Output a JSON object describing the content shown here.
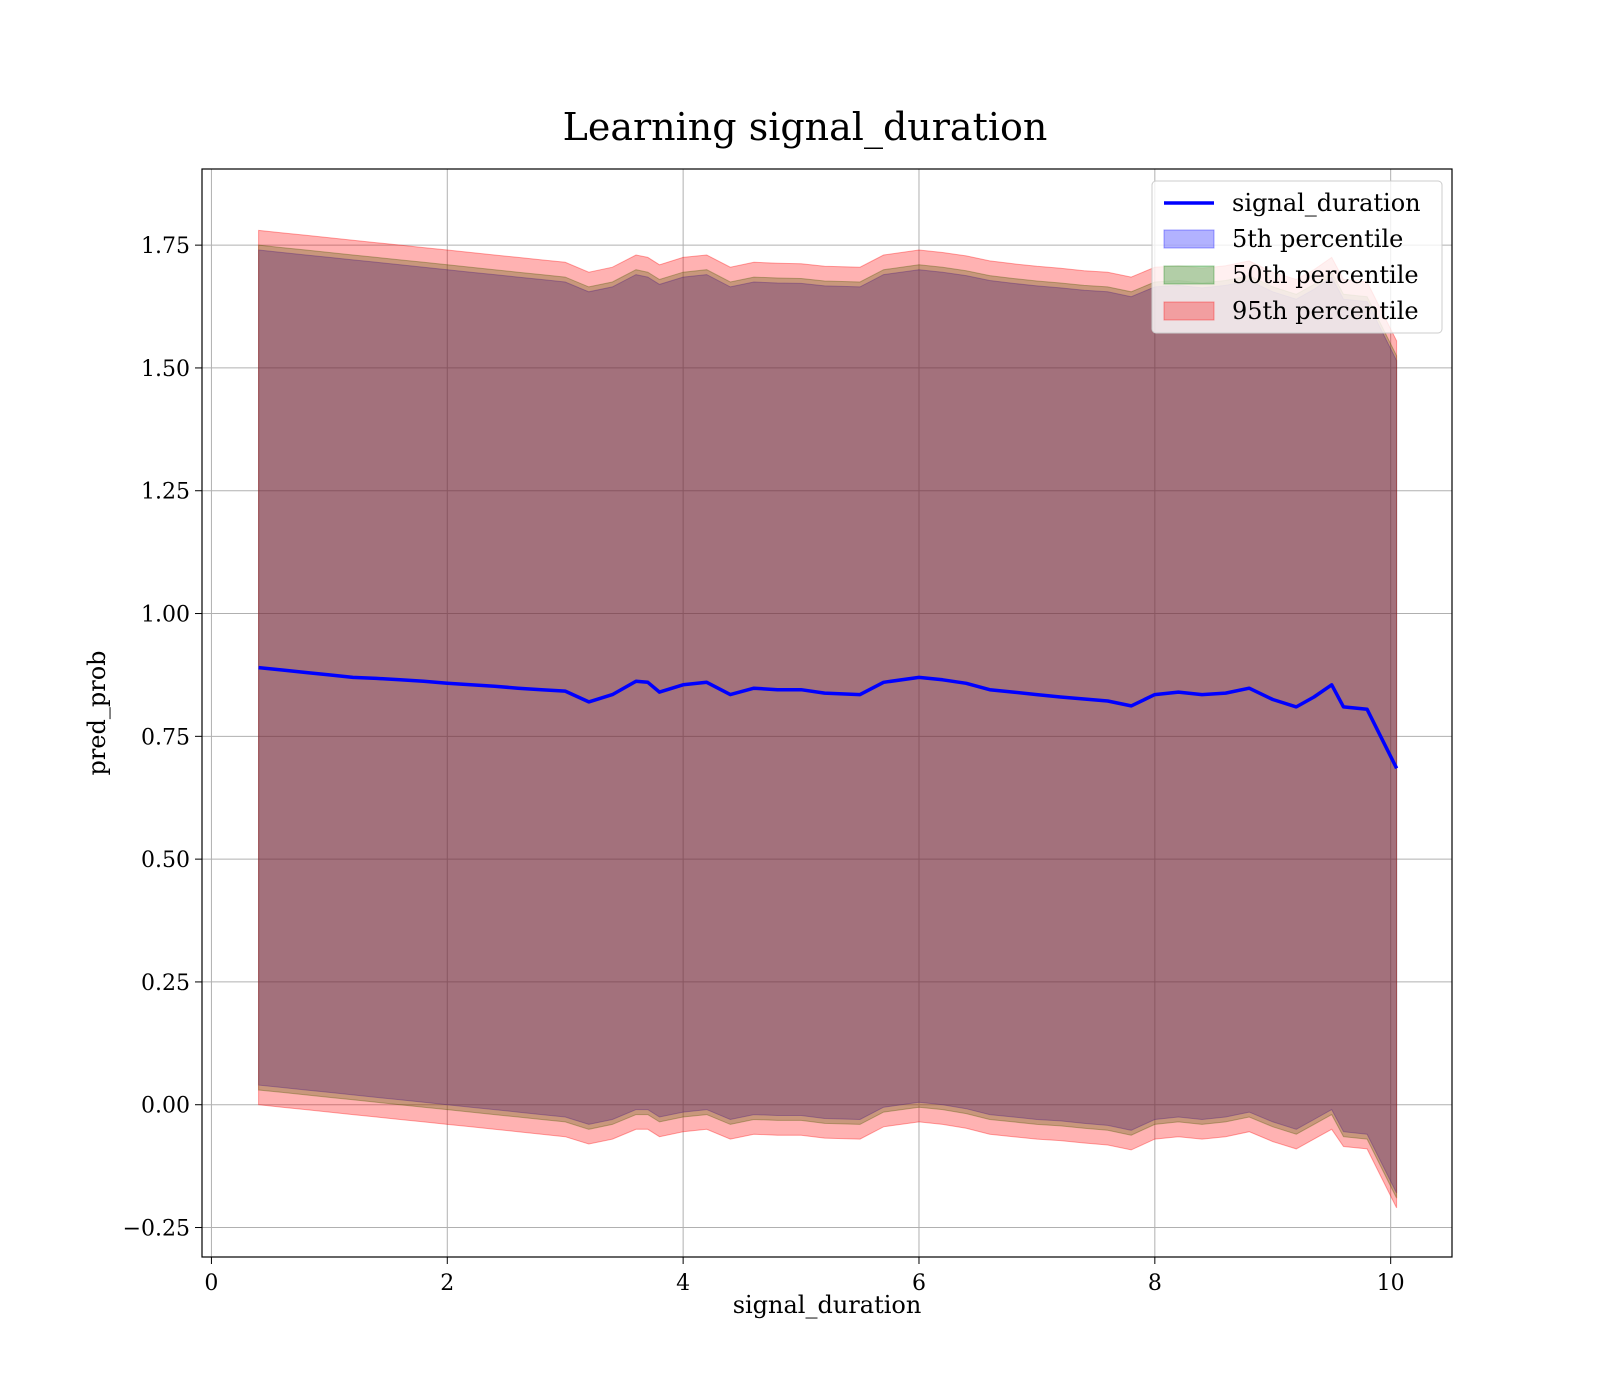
{
  "chart_data": {
    "type": "area",
    "title": "Learning signal_duration",
    "xlabel": "signal_duration",
    "ylabel": "pred_prob",
    "xlim": [
      -0.08,
      10.52
    ],
    "ylim": [
      -0.31,
      1.905
    ],
    "xticks": [
      0,
      2,
      4,
      6,
      8,
      10
    ],
    "xtick_labels": [
      "0",
      "2",
      "4",
      "6",
      "8",
      "10"
    ],
    "yticks": [
      -0.25,
      0.0,
      0.25,
      0.5,
      0.75,
      1.0,
      1.25,
      1.5,
      1.75
    ],
    "ytick_labels": [
      "−0.25",
      "0.00",
      "0.25",
      "0.50",
      "0.75",
      "1.00",
      "1.25",
      "1.50",
      "1.75"
    ],
    "grid": true,
    "legend_position": "upper-right",
    "legend": [
      {
        "label": "signal_duration",
        "kind": "line",
        "color": "#0000ff"
      },
      {
        "label": "5th percentile",
        "kind": "patch",
        "color": "#0000ff",
        "alpha": 0.3
      },
      {
        "label": "50th percentile",
        "kind": "patch",
        "color": "#008000",
        "alpha": 0.3
      },
      {
        "label": "95th percentile",
        "kind": "patch",
        "color": "#ff0000",
        "alpha": 0.3
      }
    ],
    "x": [
      0.4,
      0.6,
      0.8,
      1.0,
      1.2,
      1.4,
      1.6,
      1.8,
      2.0,
      2.2,
      2.4,
      2.6,
      2.8,
      3.0,
      3.2,
      3.4,
      3.6,
      3.7,
      3.8,
      4.0,
      4.2,
      4.4,
      4.6,
      4.8,
      5.0,
      5.2,
      5.5,
      5.7,
      6.0,
      6.2,
      6.4,
      6.6,
      6.8,
      7.0,
      7.2,
      7.4,
      7.6,
      7.8,
      8.0,
      8.2,
      8.4,
      8.6,
      8.8,
      9.0,
      9.2,
      9.35,
      9.5,
      9.6,
      9.8,
      10.05
    ],
    "series": [
      {
        "name": "signal_duration",
        "color": "#0000ff",
        "values": [
          0.89,
          0.885,
          0.88,
          0.875,
          0.87,
          0.868,
          0.865,
          0.862,
          0.858,
          0.855,
          0.852,
          0.848,
          0.845,
          0.842,
          0.82,
          0.835,
          0.862,
          0.86,
          0.84,
          0.855,
          0.86,
          0.835,
          0.848,
          0.845,
          0.845,
          0.838,
          0.835,
          0.86,
          0.87,
          0.865,
          0.858,
          0.845,
          0.84,
          0.835,
          0.83,
          0.826,
          0.822,
          0.812,
          0.835,
          0.84,
          0.835,
          0.838,
          0.848,
          0.825,
          0.81,
          0.83,
          0.855,
          0.81,
          0.805,
          0.685
        ]
      },
      {
        "name": "5th percentile",
        "color": "#0000ff",
        "alpha": 0.3,
        "lower": [
          0.04,
          0.035,
          0.03,
          0.025,
          0.02,
          0.015,
          0.01,
          0.005,
          0.0,
          -0.005,
          -0.01,
          -0.015,
          -0.02,
          -0.025,
          -0.04,
          -0.03,
          -0.01,
          -0.01,
          -0.025,
          -0.015,
          -0.01,
          -0.03,
          -0.02,
          -0.022,
          -0.022,
          -0.028,
          -0.03,
          -0.005,
          0.005,
          0.0,
          -0.008,
          -0.02,
          -0.025,
          -0.03,
          -0.033,
          -0.038,
          -0.042,
          -0.052,
          -0.03,
          -0.025,
          -0.03,
          -0.025,
          -0.015,
          -0.035,
          -0.05,
          -0.03,
          -0.01,
          -0.055,
          -0.06,
          -0.18
        ],
        "upper": [
          1.74,
          1.735,
          1.73,
          1.725,
          1.72,
          1.715,
          1.71,
          1.705,
          1.7,
          1.695,
          1.69,
          1.685,
          1.68,
          1.675,
          1.655,
          1.665,
          1.69,
          1.685,
          1.67,
          1.685,
          1.69,
          1.665,
          1.675,
          1.673,
          1.672,
          1.667,
          1.665,
          1.69,
          1.7,
          1.695,
          1.688,
          1.678,
          1.672,
          1.667,
          1.663,
          1.658,
          1.655,
          1.645,
          1.665,
          1.668,
          1.663,
          1.668,
          1.678,
          1.655,
          1.64,
          1.66,
          1.685,
          1.64,
          1.635,
          1.515
        ]
      },
      {
        "name": "50th percentile",
        "color": "#008000",
        "alpha": 0.3,
        "lower": [
          0.03,
          0.025,
          0.02,
          0.015,
          0.01,
          0.005,
          0.0,
          -0.005,
          -0.01,
          -0.015,
          -0.02,
          -0.025,
          -0.03,
          -0.035,
          -0.05,
          -0.04,
          -0.02,
          -0.02,
          -0.035,
          -0.025,
          -0.02,
          -0.04,
          -0.03,
          -0.032,
          -0.032,
          -0.038,
          -0.04,
          -0.015,
          -0.005,
          -0.01,
          -0.018,
          -0.03,
          -0.035,
          -0.04,
          -0.043,
          -0.048,
          -0.052,
          -0.062,
          -0.04,
          -0.035,
          -0.04,
          -0.035,
          -0.025,
          -0.045,
          -0.06,
          -0.04,
          -0.02,
          -0.065,
          -0.07,
          -0.19
        ],
        "upper": [
          1.75,
          1.745,
          1.74,
          1.735,
          1.73,
          1.725,
          1.72,
          1.715,
          1.71,
          1.705,
          1.7,
          1.695,
          1.69,
          1.685,
          1.665,
          1.675,
          1.7,
          1.695,
          1.68,
          1.695,
          1.7,
          1.675,
          1.685,
          1.683,
          1.682,
          1.677,
          1.675,
          1.7,
          1.71,
          1.705,
          1.698,
          1.688,
          1.682,
          1.677,
          1.673,
          1.668,
          1.665,
          1.655,
          1.675,
          1.678,
          1.673,
          1.678,
          1.688,
          1.665,
          1.65,
          1.67,
          1.695,
          1.65,
          1.645,
          1.525
        ]
      },
      {
        "name": "95th percentile",
        "color": "#ff0000",
        "alpha": 0.3,
        "lower": [
          0.0,
          -0.005,
          -0.01,
          -0.015,
          -0.02,
          -0.025,
          -0.03,
          -0.035,
          -0.04,
          -0.045,
          -0.05,
          -0.055,
          -0.06,
          -0.065,
          -0.08,
          -0.07,
          -0.05,
          -0.05,
          -0.065,
          -0.055,
          -0.05,
          -0.07,
          -0.06,
          -0.062,
          -0.062,
          -0.068,
          -0.07,
          -0.045,
          -0.035,
          -0.04,
          -0.048,
          -0.06,
          -0.065,
          -0.07,
          -0.073,
          -0.078,
          -0.082,
          -0.092,
          -0.07,
          -0.065,
          -0.07,
          -0.065,
          -0.055,
          -0.075,
          -0.09,
          -0.07,
          -0.05,
          -0.085,
          -0.09,
          -0.21
        ],
        "upper": [
          1.78,
          1.775,
          1.77,
          1.765,
          1.76,
          1.755,
          1.75,
          1.745,
          1.74,
          1.735,
          1.73,
          1.725,
          1.72,
          1.715,
          1.695,
          1.705,
          1.73,
          1.725,
          1.71,
          1.725,
          1.73,
          1.705,
          1.715,
          1.713,
          1.712,
          1.707,
          1.705,
          1.73,
          1.74,
          1.735,
          1.728,
          1.718,
          1.712,
          1.707,
          1.703,
          1.698,
          1.695,
          1.685,
          1.705,
          1.708,
          1.703,
          1.708,
          1.718,
          1.695,
          1.68,
          1.7,
          1.725,
          1.68,
          1.675,
          1.555
        ]
      }
    ]
  }
}
